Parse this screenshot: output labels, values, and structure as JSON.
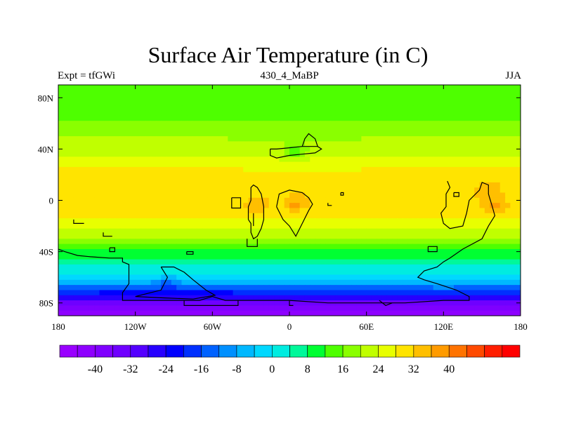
{
  "chart_data": {
    "type": "heatmap",
    "title": "Surface Air Temperature (in C)",
    "subtitle_left": "Expt = tfGWi",
    "subtitle_center": "430_4_MaBP",
    "subtitle_right": "JJA",
    "x_range": [
      -180,
      180
    ],
    "y_range": [
      -90,
      90
    ],
    "x_ticks": [
      {
        "value": -180,
        "label": "180"
      },
      {
        "value": -120,
        "label": "120W"
      },
      {
        "value": -60,
        "label": "60W"
      },
      {
        "value": 0,
        "label": "0"
      },
      {
        "value": 60,
        "label": "60E"
      },
      {
        "value": 120,
        "label": "120E"
      },
      {
        "value": 180,
        "label": "180"
      }
    ],
    "y_ticks": [
      {
        "value": 80,
        "label": "80N"
      },
      {
        "value": 40,
        "label": "40N"
      },
      {
        "value": 0,
        "label": "0"
      },
      {
        "value": -40,
        "label": "40S"
      },
      {
        "value": -80,
        "label": "80S"
      }
    ],
    "zonal_profile": [
      {
        "lat": 90,
        "value": 14
      },
      {
        "lat": 80,
        "value": 14
      },
      {
        "lat": 75,
        "value": 13
      },
      {
        "lat": 70,
        "value": 14
      },
      {
        "lat": 62,
        "value": 16
      },
      {
        "lat": 55,
        "value": 18
      },
      {
        "lat": 48,
        "value": 20
      },
      {
        "lat": 40,
        "value": 22
      },
      {
        "lat": 32,
        "value": 25
      },
      {
        "lat": 24,
        "value": 28
      },
      {
        "lat": 15,
        "value": 30
      },
      {
        "lat": 5,
        "value": 31
      },
      {
        "lat": -5,
        "value": 30
      },
      {
        "lat": -12,
        "value": 28
      },
      {
        "lat": -20,
        "value": 25
      },
      {
        "lat": -28,
        "value": 20
      },
      {
        "lat": -35,
        "value": 15
      },
      {
        "lat": -42,
        "value": 10
      },
      {
        "lat": -48,
        "value": 6
      },
      {
        "lat": -55,
        "value": 2
      },
      {
        "lat": -60,
        "value": -2
      },
      {
        "lat": -65,
        "value": -8
      },
      {
        "lat": -70,
        "value": -16
      },
      {
        "lat": -75,
        "value": -26
      },
      {
        "lat": -80,
        "value": -34
      },
      {
        "lat": -85,
        "value": -40
      },
      {
        "lat": -90,
        "value": -46
      }
    ],
    "hotspots": [
      {
        "lon": -25,
        "lat": -5,
        "value": 36
      },
      {
        "lon": 5,
        "lat": -3,
        "value": 37
      },
      {
        "lon": 5,
        "lat": 37,
        "value": 14
      },
      {
        "lon": 160,
        "lat": -5,
        "value": 37
      },
      {
        "lon": 155,
        "lat": 8,
        "value": 36
      },
      {
        "lon": -95,
        "lat": -65,
        "value": -14
      },
      {
        "lon": 120,
        "lat": -70,
        "value": -14
      }
    ],
    "coastlines": [
      [
        [
          -32,
          -15
        ],
        [
          -32,
          -5
        ],
        [
          -30,
          0
        ],
        [
          -30,
          10
        ],
        [
          -28,
          12
        ],
        [
          -25,
          10
        ],
        [
          -22,
          5
        ],
        [
          -20,
          -5
        ],
        [
          -20,
          -15
        ],
        [
          -22,
          -22
        ],
        [
          -25,
          -28
        ],
        [
          -28,
          -30
        ],
        [
          -30,
          -25
        ],
        [
          -30,
          -18
        ],
        [
          -32,
          -15
        ]
      ],
      [
        [
          -28,
          -10
        ],
        [
          -28,
          -20
        ]
      ],
      [
        [
          -10,
          -5
        ],
        [
          -8,
          5
        ],
        [
          0,
          8
        ],
        [
          10,
          6
        ],
        [
          15,
          2
        ],
        [
          18,
          -3
        ],
        [
          15,
          -8
        ],
        [
          10,
          -18
        ],
        [
          5,
          -28
        ],
        [
          0,
          -20
        ],
        [
          -5,
          -15
        ],
        [
          -10,
          -5
        ]
      ],
      [
        [
          -15,
          40
        ],
        [
          -15,
          35
        ],
        [
          -10,
          33
        ],
        [
          0,
          35
        ],
        [
          10,
          36
        ],
        [
          20,
          37
        ],
        [
          25,
          40
        ],
        [
          22,
          42
        ],
        [
          10,
          42
        ],
        [
          0,
          41
        ],
        [
          -10,
          40
        ],
        [
          -15,
          40
        ]
      ],
      [
        [
          10,
          42
        ],
        [
          12,
          48
        ],
        [
          15,
          52
        ],
        [
          20,
          48
        ],
        [
          22,
          42
        ]
      ],
      [
        [
          -45,
          2
        ],
        [
          -45,
          -6
        ],
        [
          -38,
          -6
        ],
        [
          -38,
          2
        ],
        [
          -45,
          2
        ]
      ],
      [
        [
          -33,
          -30
        ],
        [
          -33,
          -36
        ],
        [
          -25,
          -36
        ],
        [
          -25,
          -30
        ]
      ],
      [
        [
          -168,
          -15
        ],
        [
          -168,
          -18
        ],
        [
          -160,
          -18
        ]
      ],
      [
        [
          -145,
          -25
        ],
        [
          -145,
          -28
        ],
        [
          -138,
          -28
        ]
      ],
      [
        [
          -140,
          -37
        ],
        [
          -140,
          -40
        ],
        [
          -136,
          -40
        ],
        [
          -136,
          -37
        ],
        [
          -140,
          -37
        ]
      ],
      [
        [
          -180,
          -38
        ],
        [
          -175,
          -40
        ],
        [
          -165,
          -43
        ],
        [
          -155,
          -44
        ],
        [
          -140,
          -45
        ],
        [
          -130,
          -45
        ],
        [
          -130,
          -48
        ],
        [
          -125,
          -50
        ],
        [
          -125,
          -55
        ],
        [
          -125,
          -65
        ],
        [
          -130,
          -72
        ],
        [
          -130,
          -78
        ],
        [
          -110,
          -78
        ],
        [
          -90,
          -78
        ],
        [
          -70,
          -78
        ],
        [
          -60,
          -75
        ],
        [
          -50,
          -78
        ],
        [
          -35,
          -78
        ],
        [
          -20,
          -78
        ],
        [
          0,
          -78
        ],
        [
          30,
          -80
        ],
        [
          60,
          -80
        ],
        [
          90,
          -80
        ],
        [
          120,
          -78
        ],
        [
          140,
          -78
        ],
        [
          140,
          -75
        ],
        [
          130,
          -70
        ],
        [
          115,
          -65
        ],
        [
          105,
          -62
        ],
        [
          100,
          -60
        ],
        [
          105,
          -55
        ],
        [
          115,
          -52
        ],
        [
          120,
          -48
        ],
        [
          125,
          -45
        ],
        [
          135,
          -38
        ],
        [
          150,
          -30
        ],
        [
          155,
          -20
        ],
        [
          160,
          -12
        ],
        [
          158,
          -5
        ],
        [
          155,
          5
        ],
        [
          155,
          12
        ],
        [
          150,
          14
        ],
        [
          148,
          8
        ],
        [
          140,
          0
        ],
        [
          138,
          -10
        ],
        [
          135,
          -20
        ],
        [
          125,
          -22
        ],
        [
          120,
          -18
        ],
        [
          118,
          -10
        ],
        [
          122,
          -5
        ],
        [
          122,
          5
        ],
        [
          125,
          10
        ],
        [
          123,
          15
        ]
      ],
      [
        [
          -100,
          -52
        ],
        [
          -90,
          -52
        ],
        [
          -82,
          -56
        ],
        [
          -75,
          -62
        ],
        [
          -65,
          -70
        ],
        [
          -58,
          -74
        ],
        [
          -75,
          -77
        ],
        [
          -100,
          -76
        ],
        [
          -120,
          -75
        ],
        [
          -100,
          -70
        ],
        [
          -95,
          -60
        ],
        [
          -100,
          -52
        ]
      ],
      [
        [
          -80,
          -40
        ],
        [
          -80,
          -42
        ],
        [
          -75,
          -42
        ],
        [
          -75,
          -40
        ],
        [
          -80,
          -40
        ]
      ],
      [
        [
          -82,
          -78
        ],
        [
          -82,
          -82
        ],
        [
          -40,
          -82
        ],
        [
          -40,
          -78
        ]
      ],
      [
        [
          0,
          -78
        ],
        [
          0,
          -82
        ],
        [
          3,
          -82
        ]
      ],
      [
        [
          70,
          -78
        ],
        [
          75,
          -82
        ],
        [
          80,
          -80
        ]
      ],
      [
        [
          108,
          -36
        ],
        [
          115,
          -36
        ],
        [
          115,
          -40
        ],
        [
          108,
          -40
        ],
        [
          108,
          -36
        ]
      ],
      [
        [
          128,
          6
        ],
        [
          132,
          6
        ],
        [
          132,
          3
        ],
        [
          128,
          3
        ],
        [
          128,
          6
        ]
      ],
      [
        [
          40,
          6
        ],
        [
          42,
          6
        ],
        [
          42,
          4
        ],
        [
          40,
          4
        ],
        [
          40,
          6
        ]
      ],
      [
        [
          30,
          -2
        ],
        [
          30,
          -4
        ],
        [
          33,
          -4
        ]
      ]
    ],
    "colorbar": {
      "colors": [
        "#9900ff",
        "#8e00ff",
        "#7f00ff",
        "#6f00ff",
        "#5400ff",
        "#2700ff",
        "#0000ff",
        "#0030ff",
        "#0062ff",
        "#0090ff",
        "#00b8ff",
        "#00d8ff",
        "#00ece0",
        "#00f89a",
        "#00ff32",
        "#4eff00",
        "#8aff00",
        "#c0ff00",
        "#e8ff00",
        "#ffe400",
        "#ffbf00",
        "#ff9b00",
        "#ff7300",
        "#ff4a00",
        "#ff1e00",
        "#ff0000"
      ],
      "bounds": [
        -48,
        -44,
        -40,
        -36,
        -32,
        -28,
        -24,
        -20,
        -16,
        -12,
        -8,
        -4,
        0,
        4,
        8,
        12,
        16,
        20,
        24,
        28,
        32,
        36,
        40,
        44,
        48,
        52,
        56
      ],
      "tick_labels": [
        {
          "value": -40,
          "label": "-40"
        },
        {
          "value": -32,
          "label": "-32"
        },
        {
          "value": -24,
          "label": "-24"
        },
        {
          "value": -16,
          "label": "-16"
        },
        {
          "value": -8,
          "label": "-8"
        },
        {
          "value": 0,
          "label": "0"
        },
        {
          "value": 8,
          "label": "8"
        },
        {
          "value": 16,
          "label": "16"
        },
        {
          "value": 24,
          "label": "24"
        },
        {
          "value": 32,
          "label": "32"
        },
        {
          "value": 40,
          "label": "40"
        }
      ]
    }
  }
}
